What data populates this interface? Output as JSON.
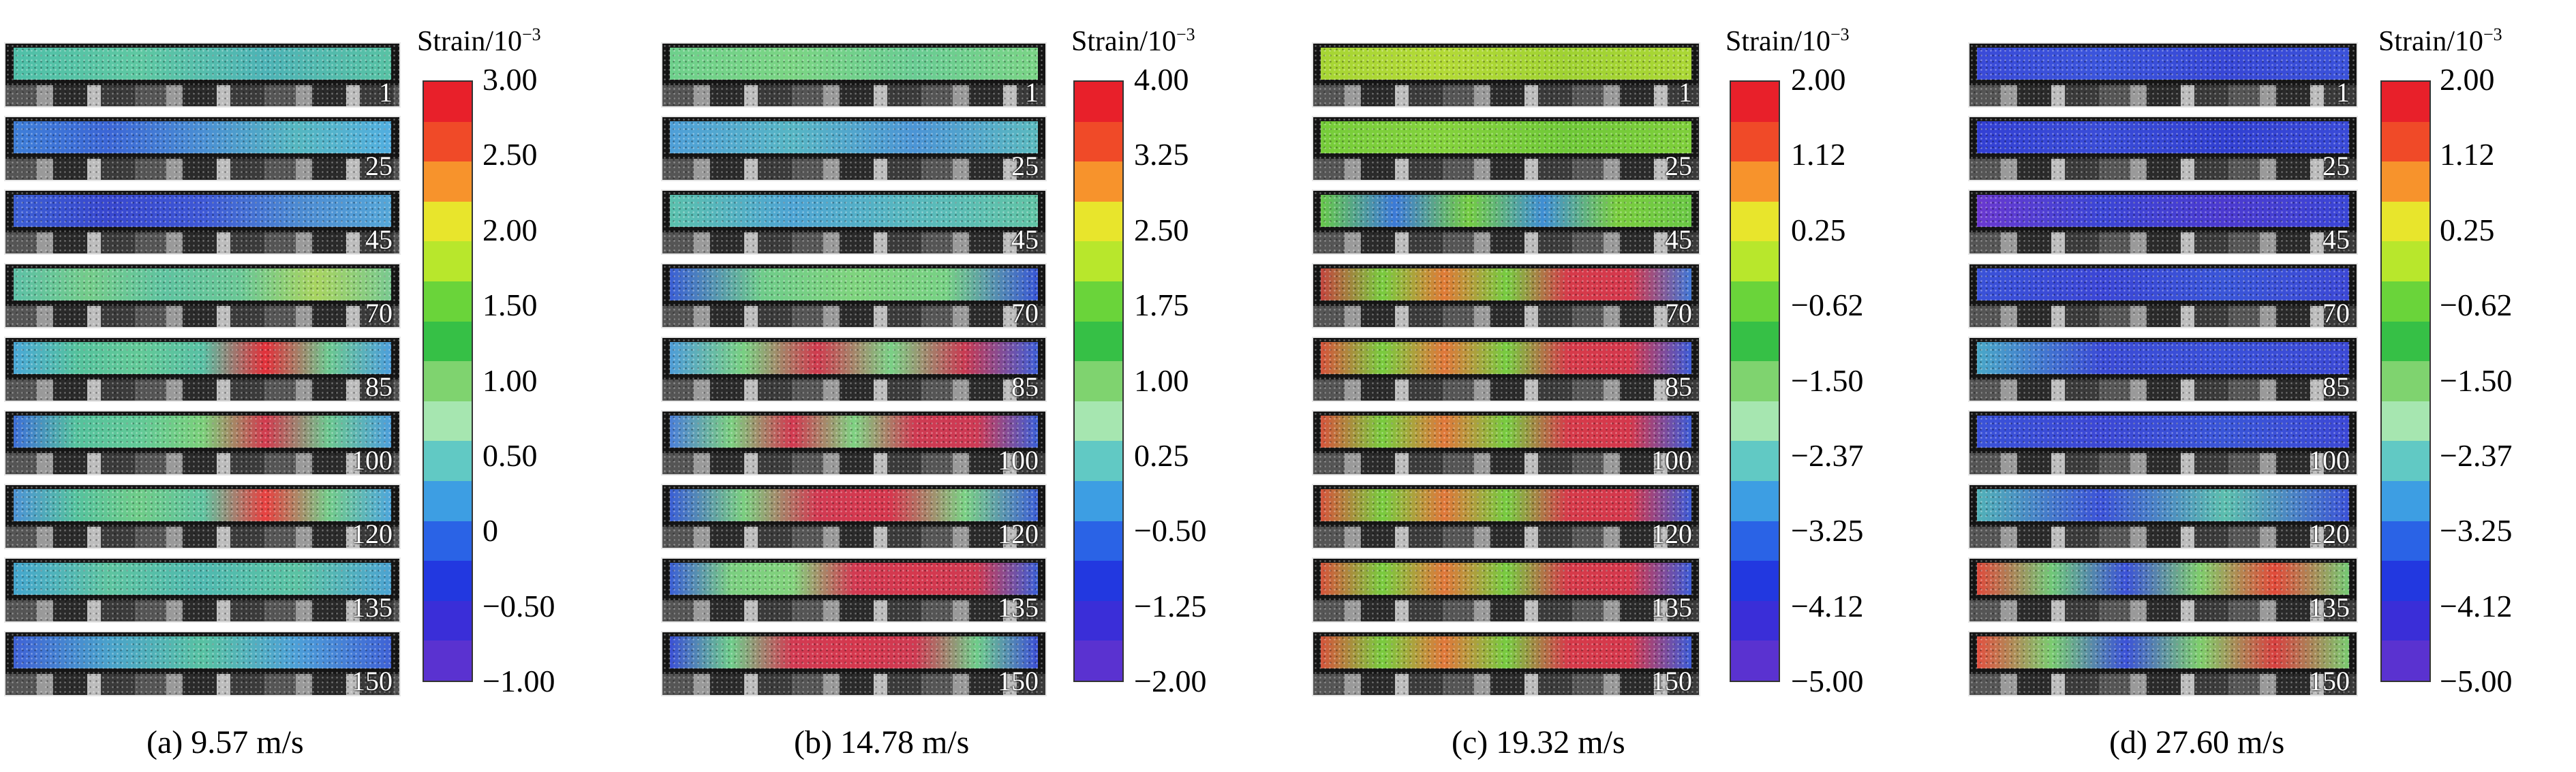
{
  "colorbar_title": "Strain/10",
  "colorbar_exponent": "−3",
  "colormap": [
    "#e8202a",
    "#f04a28",
    "#f7932c",
    "#e8e52c",
    "#b8e72c",
    "#6ad43a",
    "#36c046",
    "#7fd36f",
    "#a6e6b0",
    "#61c9c4",
    "#3d9ee3",
    "#2a63e6",
    "#2238e0",
    "#3a2ed8",
    "#5a32d0"
  ],
  "panels": [
    {
      "caption": "(a) 9.57 m/s",
      "ticks": [
        "3.00",
        "2.50",
        "2.00",
        "1.50",
        "1.00",
        "0.50",
        "0",
        "−0.50",
        "−1.00"
      ],
      "frames": [
        {
          "label": "1",
          "fill": "linear-gradient(90deg,#4fbfa9,#5ec8a2,#4db3b6,#58c2a4)"
        },
        {
          "label": "25",
          "fill": "linear-gradient(90deg,#3f7fd8,#3b66d6,#4a8fd4,#55b7c0,#52aee0)"
        },
        {
          "label": "45",
          "fill": "linear-gradient(90deg,#3c5fd4,#3847cf,#3e58d6,#4c8ad2,#55a7d8)"
        },
        {
          "label": "70",
          "fill": "linear-gradient(90deg,#5cc0a6,#74cc8a,#5fc3a0,#6ac795,#a8d460,#79c990)"
        },
        {
          "label": "85",
          "fill": "linear-gradient(90deg,#4aa8d8,#55c29d,#62c997,#58c0a4,#e3303a,#6cc890,#4d9fdc)"
        },
        {
          "label": "100",
          "fill": "linear-gradient(90deg,#3d6fd8,#55c29d,#62c997,#7bd07a,#d23a4e,#6cc890,#4d9fdc)"
        },
        {
          "label": "120",
          "fill": "linear-gradient(90deg,#4c93d6,#55c29d,#6fcc88,#5fc3a0,#e84040,#74cc8a,#4da6dc)"
        },
        {
          "label": "135",
          "fill": "linear-gradient(90deg,#44a6cf,#5ec4a0,#4fb9b0,#5bc3a3,#4ca3d2)"
        },
        {
          "label": "150",
          "fill": "linear-gradient(90deg,#3f62d6,#4aa2cc,#58c2a2,#4d9fd8,#3f62d6)"
        }
      ]
    },
    {
      "caption": "(b) 14.78 m/s",
      "ticks": [
        "4.00",
        "3.25",
        "2.50",
        "1.75",
        "1.00",
        "0.25",
        "−0.50",
        "−1.25",
        "−2.00"
      ],
      "frames": [
        {
          "label": "1",
          "fill": "linear-gradient(90deg,#6ed08c,#7bd584,#69cc93,#7ad486)"
        },
        {
          "label": "25",
          "fill": "linear-gradient(90deg,#4f9fd8,#57b6c4,#4c95d6,#5bbabf)"
        },
        {
          "label": "45",
          "fill": "linear-gradient(90deg,#5bc1ad,#4ea4d4,#58b9bd,#61c4a5)"
        },
        {
          "label": "70",
          "fill": "linear-gradient(90deg,#3b5fd5,#6fcc8a,#7fd47e,#77d184,#3856d6)"
        },
        {
          "label": "85",
          "fill": "linear-gradient(90deg,#4f9dd8,#79d082,#d03a4e,#7ad186,#c93a52,#3f5fd8)"
        },
        {
          "label": "100",
          "fill": "linear-gradient(90deg,#4b7fd8,#7ccf80,#d23850,#7ed282,#cf3a52,#ce3a54,#3c60d8)"
        },
        {
          "label": "120",
          "fill": "linear-gradient(90deg,#3b5fd6,#7bcf80,#d23a52,#d5384e,#7bd184,#3c5fd6)"
        },
        {
          "label": "135",
          "fill": "linear-gradient(90deg,#3b5fd6,#7bcf80,#82d27c,#d23a52,#d5384e,#cf3a52,#3c5fd6)"
        },
        {
          "label": "150",
          "fill": "linear-gradient(90deg,#3b50d6,#6fcd8a,#d23a52,#d5384e,#cf3a52,#6fcd8a,#3c50d6)"
        }
      ]
    },
    {
      "caption": "(c) 19.32 m/s",
      "ticks": [
        "2.00",
        "1.12",
        "0.25",
        "−0.62",
        "−1.50",
        "−2.37",
        "−3.25",
        "−4.12",
        "−5.00"
      ],
      "frames": [
        {
          "label": "1",
          "fill": "linear-gradient(90deg,#a6d534,#b3da36,#9fd232,#abd735)"
        },
        {
          "label": "25",
          "fill": "linear-gradient(90deg,#76cc3a,#84d23c,#6fc838,#7fcf3b)"
        },
        {
          "label": "45",
          "fill": "linear-gradient(90deg,#68c84a,#3c7ad8,#74cc42,#3f8ed4,#7acd3f,#6ac845)"
        },
        {
          "label": "70",
          "fill": "linear-gradient(90deg,#c4453e,#78cc3e,#e07a36,#76cc40,#d63a4a,#d5384c,#4078d8)"
        },
        {
          "label": "85",
          "fill": "linear-gradient(90deg,#d6543c,#78cc3e,#e0773a,#76cc40,#d63a4a,#d5384c,#3c5cd8)"
        },
        {
          "label": "100",
          "fill": "linear-gradient(90deg,#d6543c,#78cc3e,#e0773a,#76cc40,#d63a4a,#d5384c,#3c5cd8)"
        },
        {
          "label": "120",
          "fill": "linear-gradient(90deg,#d6543c,#78cc3e,#e0773a,#76cc40,#d63a4a,#d5384c,#3c5cd8)"
        },
        {
          "label": "135",
          "fill": "linear-gradient(90deg,#d6543c,#78cc3e,#e0773a,#76cc40,#d63a4a,#d5384c,#3c5cd8)"
        },
        {
          "label": "150",
          "fill": "linear-gradient(90deg,#d6543c,#78cc3e,#e0773a,#76cc40,#d63a4a,#d5384c,#3c5cd8)"
        }
      ]
    },
    {
      "caption": "(d) 27.60 m/s",
      "ticks": [
        "2.00",
        "1.12",
        "0.25",
        "−0.62",
        "−1.50",
        "−2.37",
        "−3.25",
        "−4.12",
        "−5.00"
      ],
      "frames": [
        {
          "label": "1",
          "fill": "linear-gradient(90deg,#3a4ad8,#3b55dc,#3747d6,#3b52da)"
        },
        {
          "label": "25",
          "fill": "linear-gradient(90deg,#3340d4,#3a4dd8,#3140d2,#3a4bd8)"
        },
        {
          "label": "45",
          "fill": "linear-gradient(90deg,#6a38d0,#3b46d6,#4c3ad0,#3a46d6)"
        },
        {
          "label": "70",
          "fill": "linear-gradient(90deg,#3a52d8,#3b46d6,#3a56d8,#3c48d6)"
        },
        {
          "label": "85",
          "fill": "linear-gradient(90deg,#4aa8c8,#3b4cd6,#3a50d8,#3c4ad6)"
        },
        {
          "label": "100",
          "fill": "linear-gradient(90deg,#3a52d8,#3c48d6,#3a56d8,#3c48d6)"
        },
        {
          "label": "120",
          "fill": "linear-gradient(90deg,#52b2b8,#3b52d8,#5cbfae,#3b52d8)"
        },
        {
          "label": "135",
          "fill": "linear-gradient(90deg,#e04a3c,#70c878,#3b52d8,#7fcd6c,#e24a3a,#74ca74)"
        },
        {
          "label": "150",
          "fill": "linear-gradient(90deg,#e25040,#7acc70,#3b52d8,#7fcf6c,#d84040,#7acb70)"
        }
      ]
    }
  ]
}
